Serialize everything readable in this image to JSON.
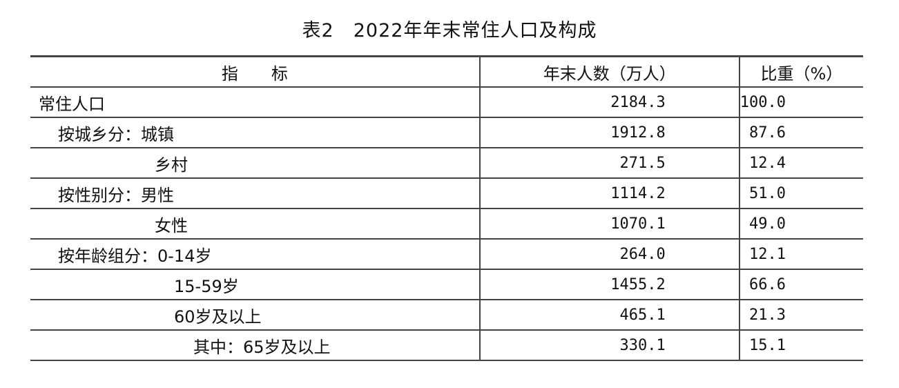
{
  "title": "表2　2022年年末常住人口及构成",
  "headers": [
    "指　　标",
    "年末人数（万人）",
    "比重（%）"
  ],
  "rows": [
    {
      "label": "常住人口",
      "indent": 0,
      "count": "2184.3",
      "share": "100.0"
    },
    {
      "label": "按城乡分：城镇",
      "indent": 1,
      "count": "1912.8",
      "share": "87.6"
    },
    {
      "label": "乡村",
      "indent": 2,
      "count": "271.5",
      "share": "12.4"
    },
    {
      "label": "按性别分：男性",
      "indent": 1,
      "count": "1114.2",
      "share": "51.0"
    },
    {
      "label": "女性",
      "indent": 2,
      "count": "1070.1",
      "share": "49.0"
    },
    {
      "label": "按年龄组分：0-14岁",
      "indent": 1,
      "count": "264.0",
      "share": "12.1"
    },
    {
      "label": "15-59岁",
      "indent": 3,
      "count": "1455.2",
      "share": "66.6"
    },
    {
      "label": "60岁及以上",
      "indent": 3,
      "count": "465.1",
      "share": "21.3"
    },
    {
      "label": "其中：65岁及以上",
      "indent": 4,
      "count": "330.1",
      "share": "15.1"
    }
  ]
}
